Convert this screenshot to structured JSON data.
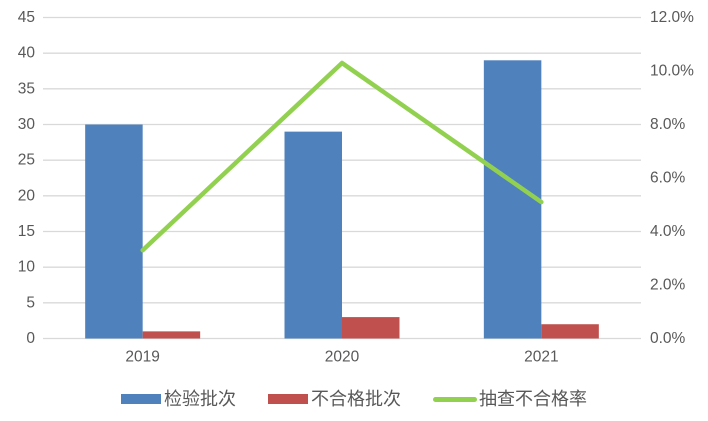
{
  "chart_data": {
    "type": "bar",
    "subtype": "bar-line-combo",
    "title": "",
    "categories": [
      "2019",
      "2020",
      "2021"
    ],
    "series": [
      {
        "name": "检验批次",
        "type": "bar",
        "axis": "left",
        "color": "#4F81BD",
        "values": [
          30,
          29,
          39
        ]
      },
      {
        "name": "不合格批次",
        "type": "bar",
        "axis": "left",
        "color": "#C0504D",
        "values": [
          1,
          3,
          2
        ]
      },
      {
        "name": "抽查不合格率",
        "type": "line",
        "axis": "right",
        "color": "#92D050",
        "values": [
          3.3,
          10.3,
          5.1
        ]
      }
    ],
    "left_axis": {
      "min": 0,
      "max": 45,
      "step": 5,
      "ticks": [
        "0",
        "5",
        "10",
        "15",
        "20",
        "25",
        "30",
        "35",
        "40",
        "45"
      ]
    },
    "right_axis": {
      "min": 0,
      "max": 12,
      "step": 2,
      "ticks": [
        "0.0%",
        "2.0%",
        "4.0%",
        "6.0%",
        "8.0%",
        "10.0%",
        "12.0%"
      ]
    },
    "grid": true,
    "legend_position": "bottom"
  },
  "colors": {
    "background": "#FFFFFF",
    "gridline": "#D9D9D9",
    "axis_line": "#D9D9D9",
    "tick_text": "#595959"
  }
}
